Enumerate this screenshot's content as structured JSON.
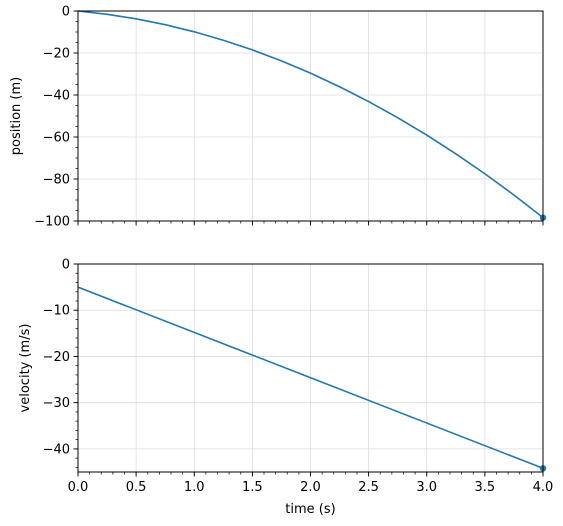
{
  "chart_data": [
    {
      "type": "line",
      "title": "",
      "xlabel": "",
      "ylabel": "position (m)",
      "xlim": [
        0,
        4
      ],
      "ylim": [
        -100,
        0
      ],
      "grid": true,
      "x_ticks": [
        "",
        "",
        "",
        "",
        "",
        "",
        "",
        "",
        ""
      ],
      "y_ticks": [
        "−100",
        "−80",
        "−60",
        "−40",
        "−20",
        "0"
      ],
      "x": [
        0,
        0.25,
        0.5,
        0.75,
        1.0,
        1.25,
        1.5,
        1.75,
        2.0,
        2.25,
        2.5,
        2.75,
        3.0,
        3.25,
        3.5,
        3.75,
        4.0
      ],
      "series": [
        {
          "values": [
            0,
            -1.56,
            -3.73,
            -6.51,
            -9.9,
            -13.91,
            -18.53,
            -23.76,
            -29.6,
            -36.06,
            -43.13,
            -50.8,
            -59.1,
            -68.0,
            -77.51,
            -87.64,
            -98.4
          ],
          "color": "#1f77b4",
          "end_marker": {
            "x": 4.0,
            "y": -98.4
          }
        }
      ]
    },
    {
      "type": "line",
      "title": "",
      "xlabel": "time (s)",
      "ylabel": "velocity (m/s)",
      "xlim": [
        0,
        4
      ],
      "ylim": [
        -45,
        0
      ],
      "grid": true,
      "x_ticks": [
        "0.0",
        "0.5",
        "1.0",
        "1.5",
        "2.0",
        "2.5",
        "3.0",
        "3.5",
        "4.0"
      ],
      "y_ticks": [
        "−40",
        "−30",
        "−20",
        "−10",
        "0"
      ],
      "x": [
        0,
        4.0
      ],
      "series": [
        {
          "values": [
            -5.0,
            -44.2
          ],
          "color": "#1f77b4",
          "end_marker": {
            "x": 4.0,
            "y": -44.2
          }
        }
      ]
    }
  ]
}
